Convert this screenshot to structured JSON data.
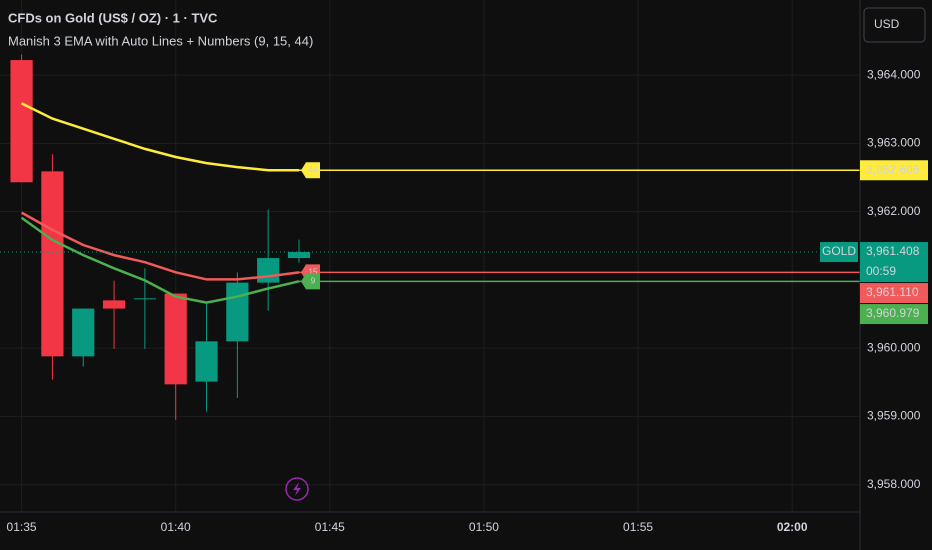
{
  "chart_data": {
    "type": "candlestick",
    "title": "CFDs on Gold (US$ / OZ) · 1 · TVC",
    "subtitle": "Manish 3 EMA with Auto Lines + Numbers (9, 15, 44)",
    "currency": "USD",
    "symbol": "GOLD",
    "countdown": "00:59",
    "x": [
      0,
      1,
      2,
      3,
      4,
      5,
      6,
      7,
      8,
      9
    ],
    "open": [
      3964.22,
      3962.59,
      3959.88,
      3960.7,
      3960.73,
      3960.8,
      3959.51,
      3960.1,
      3960.96,
      3961.32
    ],
    "high": [
      3964.3,
      3962.84,
      3960.58,
      3960.99,
      3961.17,
      3960.8,
      3960.67,
      3961.11,
      3962.03,
      3961.59
    ],
    "low": [
      3962.43,
      3959.54,
      3959.73,
      3959.99,
      3959.99,
      3958.95,
      3959.07,
      3959.27,
      3960.55,
      3961.25
    ],
    "close": [
      3962.43,
      3959.88,
      3960.58,
      3960.58,
      3960.73,
      3959.47,
      3960.1,
      3960.96,
      3961.32,
      3961.408
    ],
    "close_label": "3,961.408",
    "up_color": "#089981",
    "down_color": "#f23645",
    "series": [
      {
        "name": "44",
        "color": "#ffeb3b",
        "values": [
          3963.585,
          3963.363,
          3963.215,
          3963.067,
          3962.919,
          3962.8,
          3962.711,
          3962.652,
          3962.607,
          3962.606
        ],
        "last_label": "3,962.606"
      },
      {
        "name": "15",
        "color": "#f05a5a",
        "values": [
          3961.985,
          3961.733,
          3961.511,
          3961.363,
          3961.259,
          3961.111,
          3961.007,
          3961.007,
          3961.052,
          3961.11
        ],
        "last_label": "3,961.110"
      },
      {
        "name": "9",
        "color": "#4caf50",
        "values": [
          3961.911,
          3961.585,
          3961.363,
          3961.17,
          3960.993,
          3960.756,
          3960.667,
          3960.756,
          3960.874,
          3960.979
        ],
        "last_label": "3,960.979"
      }
    ],
    "xlim": [
      -0.7,
      27.2
    ],
    "xticks": [
      {
        "value": 0,
        "label": "01:35"
      },
      {
        "value": 5,
        "label": "01:40"
      },
      {
        "value": 10,
        "label": "01:45"
      },
      {
        "value": 15,
        "label": "01:50"
      },
      {
        "value": 20,
        "label": "01:55"
      },
      {
        "value": 25,
        "label": "02:00"
      }
    ],
    "ylim": [
      3957.6,
      3965.1
    ],
    "yticks": [
      {
        "value": 3958,
        "label": "3,958.000"
      },
      {
        "value": 3959,
        "label": "3,959.000"
      },
      {
        "value": 3960,
        "label": "3,960.000"
      },
      {
        "value": 3962,
        "label": "3,962.000"
      },
      {
        "value": 3963,
        "label": "3,963.000"
      },
      {
        "value": 3964,
        "label": "3,964.000"
      }
    ],
    "grid": true
  }
}
